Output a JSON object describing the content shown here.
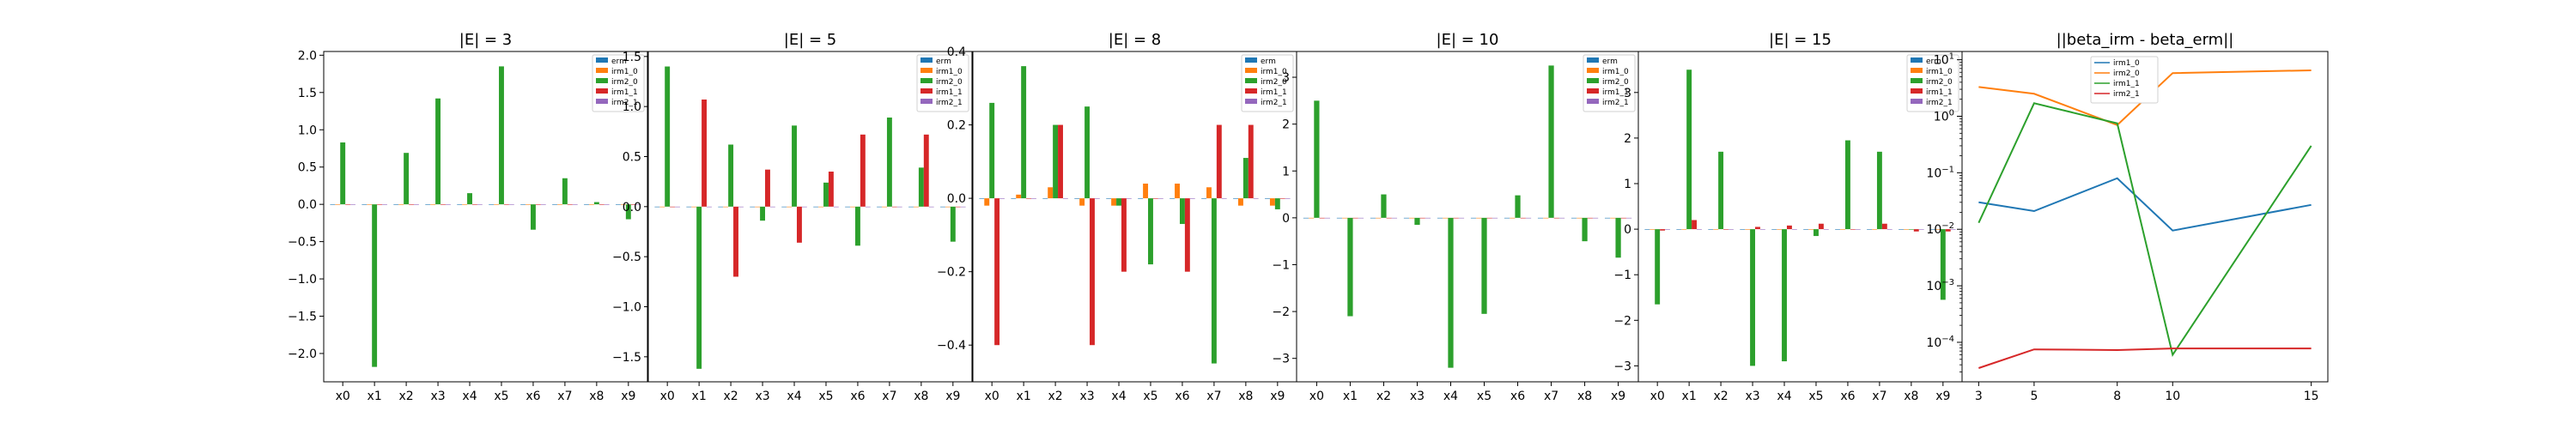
{
  "colors": {
    "erm": "#1f77b4",
    "irm1_0": "#ff7f0e",
    "irm2_0": "#2ca02c",
    "irm1_1": "#d62728",
    "irm2_1": "#9467bd"
  },
  "chart_data": [
    {
      "type": "bar",
      "title": "|E| = 3",
      "categories": [
        "x0",
        "x1",
        "x2",
        "x3",
        "x4",
        "x5",
        "x6",
        "x7",
        "x8",
        "x9"
      ],
      "ylim": [
        -2.38,
        2.05
      ],
      "yticks": [
        2.0,
        1.5,
        1.0,
        0.5,
        0.0,
        -0.5,
        -1.0,
        -1.5,
        -2.0
      ],
      "ytick_labels": [
        "2.0",
        "1.5",
        "1.0",
        "0.5",
        "0.0",
        "−0.5",
        "−1.0",
        "−1.5",
        "−2.0"
      ],
      "legend": "top-right",
      "series": [
        {
          "name": "erm",
          "values": [
            0,
            0,
            0,
            0,
            0,
            0,
            0,
            0,
            0,
            0
          ]
        },
        {
          "name": "irm1_0",
          "values": [
            0,
            0,
            0,
            0,
            0,
            0,
            0,
            0,
            0,
            0
          ]
        },
        {
          "name": "irm2_0",
          "values": [
            0.83,
            -2.18,
            0.69,
            1.42,
            0.15,
            1.85,
            -0.34,
            0.35,
            0.03,
            -0.2
          ]
        },
        {
          "name": "irm1_1",
          "values": [
            0,
            0,
            0,
            0,
            0,
            0,
            0,
            0,
            0,
            0
          ]
        },
        {
          "name": "irm2_1",
          "values": [
            0,
            0,
            0,
            0,
            0,
            0,
            0,
            0,
            0,
            0
          ]
        }
      ]
    },
    {
      "type": "bar",
      "title": "|E| = 5",
      "categories": [
        "x0",
        "x1",
        "x2",
        "x3",
        "x4",
        "x5",
        "x6",
        "x7",
        "x8",
        "x9"
      ],
      "ylim": [
        -1.75,
        1.55
      ],
      "yticks": [
        1.5,
        1.0,
        0.5,
        0.0,
        -0.5,
        -1.0,
        -1.5
      ],
      "ytick_labels": [
        "1.5",
        "1.0",
        "0.5",
        "0.0",
        "−0.5",
        "−1.0",
        "−1.5"
      ],
      "legend": "top-right",
      "series": [
        {
          "name": "erm",
          "values": [
            0,
            0,
            0,
            0,
            0,
            0,
            0,
            0,
            0,
            0
          ]
        },
        {
          "name": "irm1_0",
          "values": [
            0,
            0,
            0,
            0,
            0,
            0,
            0,
            0,
            0,
            0
          ]
        },
        {
          "name": "irm2_0",
          "values": [
            1.4,
            -1.62,
            0.62,
            -0.14,
            0.81,
            0.24,
            -0.39,
            0.89,
            0.39,
            -0.35
          ]
        },
        {
          "name": "irm1_1",
          "values": [
            0,
            1.07,
            -0.7,
            0.37,
            -0.36,
            0.35,
            0.72,
            0,
            0.72,
            0
          ]
        },
        {
          "name": "irm2_1",
          "values": [
            0,
            0,
            0,
            0,
            0,
            0,
            0,
            0,
            0,
            0
          ]
        }
      ]
    },
    {
      "type": "bar",
      "title": "|E| = 8",
      "categories": [
        "x0",
        "x1",
        "x2",
        "x3",
        "x4",
        "x5",
        "x6",
        "x7",
        "x8",
        "x9"
      ],
      "ylim": [
        -0.5,
        0.4
      ],
      "yticks": [
        0.4,
        0.2,
        0.0,
        -0.2,
        -0.4
      ],
      "ytick_labels": [
        "0.4",
        "0.2",
        "0.0",
        "−0.2",
        "−0.4"
      ],
      "legend": "top-right",
      "series": [
        {
          "name": "erm",
          "values": [
            0,
            0,
            0,
            0,
            0,
            0,
            0,
            0,
            0,
            0
          ]
        },
        {
          "name": "irm1_0",
          "values": [
            -0.02,
            0.01,
            0.03,
            -0.02,
            -0.02,
            0.04,
            0.04,
            0.03,
            -0.02,
            -0.02
          ]
        },
        {
          "name": "irm2_0",
          "values": [
            0.26,
            0.36,
            0.2,
            0.25,
            -0.02,
            -0.18,
            -0.07,
            -0.45,
            0.11,
            -0.03
          ]
        },
        {
          "name": "irm1_1",
          "values": [
            -0.4,
            0,
            0.2,
            -0.4,
            -0.2,
            0,
            -0.2,
            0.2,
            0.2,
            0
          ]
        },
        {
          "name": "irm2_1",
          "values": [
            0,
            0,
            0,
            0,
            0,
            0,
            0,
            0,
            0,
            0
          ]
        }
      ]
    },
    {
      "type": "bar",
      "title": "|E| = 10",
      "categories": [
        "x0",
        "x1",
        "x2",
        "x3",
        "x4",
        "x5",
        "x6",
        "x7",
        "x8",
        "x9"
      ],
      "ylim": [
        -3.5,
        3.55
      ],
      "yticks": [
        3,
        2,
        1,
        0,
        -1,
        -2,
        -3
      ],
      "ytick_labels": [
        "3",
        "2",
        "1",
        "0",
        "−1",
        "−2",
        "−3"
      ],
      "legend": "top-right",
      "series": [
        {
          "name": "erm",
          "values": [
            0,
            0,
            0,
            0,
            0,
            0,
            0,
            0,
            0,
            0
          ]
        },
        {
          "name": "irm1_0",
          "values": [
            0,
            0,
            0,
            0,
            0,
            0,
            0,
            0,
            0,
            0
          ]
        },
        {
          "name": "irm2_0",
          "values": [
            2.5,
            -2.1,
            0.5,
            -0.15,
            -3.2,
            -2.05,
            0.48,
            3.25,
            -0.5,
            -0.85
          ]
        },
        {
          "name": "irm1_1",
          "values": [
            0,
            0,
            0,
            0,
            0,
            0,
            0,
            0,
            0,
            0
          ]
        },
        {
          "name": "irm2_1",
          "values": [
            0,
            0,
            0,
            0,
            0,
            0,
            0,
            0,
            0,
            0
          ]
        }
      ]
    },
    {
      "type": "bar",
      "title": "|E| = 15",
      "categories": [
        "x0",
        "x1",
        "x2",
        "x3",
        "x4",
        "x5",
        "x6",
        "x7",
        "x8",
        "x9"
      ],
      "ylim": [
        -3.35,
        3.9
      ],
      "yticks": [
        3,
        2,
        1,
        0,
        -1,
        -2,
        -3
      ],
      "ytick_labels": [
        "3",
        "2",
        "1",
        "0",
        "−1",
        "−2",
        "−3"
      ],
      "legend": "top-right",
      "series": [
        {
          "name": "erm",
          "values": [
            0,
            0,
            0,
            0,
            0,
            0,
            0,
            0,
            0,
            0
          ]
        },
        {
          "name": "irm1_0",
          "values": [
            0,
            0,
            0,
            0,
            0,
            0,
            0,
            0,
            0,
            0
          ]
        },
        {
          "name": "irm2_0",
          "values": [
            -1.65,
            3.5,
            1.7,
            -3.0,
            -2.9,
            -0.15,
            1.95,
            1.7,
            0,
            -1.55
          ]
        },
        {
          "name": "irm1_1",
          "values": [
            -0.03,
            0.2,
            0,
            0.05,
            0.08,
            0.12,
            0,
            0.12,
            -0.05,
            -0.05
          ]
        },
        {
          "name": "irm2_1",
          "values": [
            0,
            0,
            0,
            0,
            0,
            0,
            0,
            0,
            0,
            0
          ]
        }
      ]
    },
    {
      "type": "line",
      "title": "||beta_irm - beta_erm||",
      "x": [
        3,
        5,
        8,
        10,
        15
      ],
      "xlim": [
        2.4,
        15.6
      ],
      "xticks": [
        3,
        5,
        8,
        10,
        15
      ],
      "yscale": "log",
      "ylim": [
        2e-05,
        14
      ],
      "ytick_labels": [
        {
          "base": "10",
          "exp": "1",
          "value": 10
        },
        {
          "base": "10",
          "exp": "0",
          "value": 1
        },
        {
          "base": "10",
          "exp": "−1",
          "value": 0.1
        },
        {
          "base": "10",
          "exp": "−2",
          "value": 0.01
        },
        {
          "base": "10",
          "exp": "−3",
          "value": 0.001
        },
        {
          "base": "10",
          "exp": "−4",
          "value": 0.0001
        }
      ],
      "legend": "top-left",
      "series": [
        {
          "name": "irm1_0",
          "color_key": "erm",
          "values": [
            0.03,
            0.021,
            0.08,
            0.0095,
            0.027
          ]
        },
        {
          "name": "irm2_0",
          "color_key": "irm1_0",
          "values": [
            3.3,
            2.5,
            0.7,
            5.8,
            6.5
          ]
        },
        {
          "name": "irm1_1",
          "color_key": "irm2_0",
          "values": [
            0.013,
            1.7,
            0.75,
            6e-05,
            0.3
          ]
        },
        {
          "name": "irm2_1",
          "color_key": "irm1_1",
          "values": [
            3.5e-05,
            7.5e-05,
            7.3e-05,
            7.8e-05,
            7.8e-05
          ]
        }
      ]
    }
  ]
}
